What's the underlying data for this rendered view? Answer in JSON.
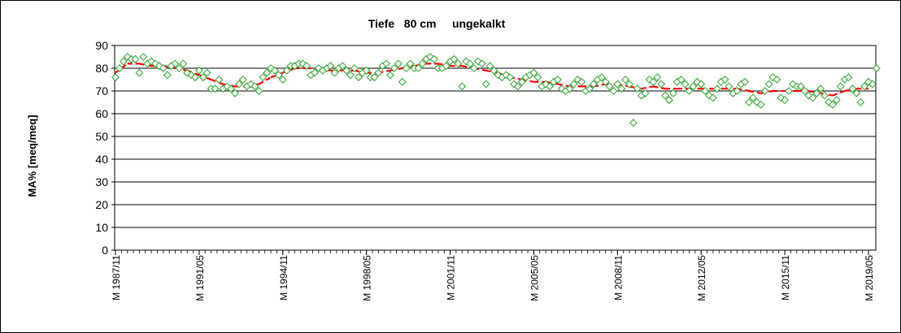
{
  "chart_data": {
    "type": "scatter",
    "title": "Tiefe   80 cm     ungekalkt",
    "xlabel": "",
    "ylabel": "MA% [meq/meq]",
    "ylim": [
      0,
      90
    ],
    "yticks": [
      0,
      10,
      20,
      30,
      40,
      50,
      60,
      70,
      80,
      90
    ],
    "xlim": [
      "1987-11",
      "2019-05"
    ],
    "xtick_labels": [
      {
        "label": "M 1987/11",
        "date": "1987-11"
      },
      {
        "label": "M 1991/05",
        "date": "1991-05"
      },
      {
        "label": "M 1994/11",
        "date": "1994-11"
      },
      {
        "label": "M 1998/05",
        "date": "1998-05"
      },
      {
        "label": "M 2001/11",
        "date": "2001-11"
      },
      {
        "label": "M 2005/05",
        "date": "2005-05"
      },
      {
        "label": "M 2008/11",
        "date": "2008-11"
      },
      {
        "label": "M 2012/05",
        "date": "2012-05"
      },
      {
        "label": "M 2015/11",
        "date": "2015-11"
      },
      {
        "label": "M 2019/05",
        "date": "2019-05"
      }
    ],
    "grid": "horizontal",
    "legend": "none",
    "series": [
      {
        "kind": "markers",
        "marker": "diamond-open",
        "color": "#2ca02c",
        "points": [
          [
            "1987-11",
            76
          ],
          [
            "1988-01",
            80
          ],
          [
            "1988-03",
            83
          ],
          [
            "1988-05",
            85
          ],
          [
            "1988-07",
            84
          ],
          [
            "1988-09",
            84
          ],
          [
            "1988-11",
            78
          ],
          [
            "1989-01",
            85
          ],
          [
            "1989-03",
            82
          ],
          [
            "1989-05",
            83
          ],
          [
            "1989-07",
            82
          ],
          [
            "1989-09",
            81
          ],
          [
            "1989-11",
            80
          ],
          [
            "1990-01",
            77
          ],
          [
            "1990-03",
            81
          ],
          [
            "1990-05",
            82
          ],
          [
            "1990-07",
            80
          ],
          [
            "1990-09",
            82
          ],
          [
            "1990-11",
            78
          ],
          [
            "1991-01",
            77
          ],
          [
            "1991-03",
            76
          ],
          [
            "1991-05",
            79
          ],
          [
            "1991-07",
            76
          ],
          [
            "1991-09",
            78
          ],
          [
            "1991-11",
            71
          ],
          [
            "1992-01",
            71
          ],
          [
            "1992-03",
            75
          ],
          [
            "1992-05",
            71
          ],
          [
            "1992-07",
            72
          ],
          [
            "1992-09",
            71
          ],
          [
            "1992-11",
            69
          ],
          [
            "1993-01",
            73
          ],
          [
            "1993-03",
            75
          ],
          [
            "1993-05",
            72
          ],
          [
            "1993-07",
            73
          ],
          [
            "1993-09",
            72
          ],
          [
            "1993-11",
            70
          ],
          [
            "1994-01",
            76
          ],
          [
            "1994-03",
            78
          ],
          [
            "1994-05",
            80
          ],
          [
            "1994-07",
            79
          ],
          [
            "1994-09",
            77
          ],
          [
            "1994-11",
            75
          ],
          [
            "1995-01",
            79
          ],
          [
            "1995-03",
            81
          ],
          [
            "1995-05",
            81
          ],
          [
            "1995-07",
            82
          ],
          [
            "1995-09",
            82
          ],
          [
            "1995-11",
            81
          ],
          [
            "1996-01",
            77
          ],
          [
            "1996-03",
            78
          ],
          [
            "1996-05",
            80
          ],
          [
            "1996-07",
            79
          ],
          [
            "1996-09",
            80
          ],
          [
            "1996-11",
            81
          ],
          [
            "1997-01",
            78
          ],
          [
            "1997-03",
            80
          ],
          [
            "1997-05",
            81
          ],
          [
            "1997-07",
            79
          ],
          [
            "1997-09",
            77
          ],
          [
            "1997-11",
            80
          ],
          [
            "1998-01",
            76
          ],
          [
            "1998-03",
            78
          ],
          [
            "1998-05",
            79
          ],
          [
            "1998-07",
            76
          ],
          [
            "1998-09",
            76
          ],
          [
            "1998-11",
            78
          ],
          [
            "1999-01",
            81
          ],
          [
            "1999-03",
            82
          ],
          [
            "1999-05",
            77
          ],
          [
            "1999-07",
            80
          ],
          [
            "1999-09",
            82
          ],
          [
            "1999-11",
            74
          ],
          [
            "2000-01",
            80
          ],
          [
            "2000-03",
            82
          ],
          [
            "2000-05",
            80
          ],
          [
            "2000-07",
            80
          ],
          [
            "2000-09",
            82
          ],
          [
            "2000-11",
            84
          ],
          [
            "2001-01",
            85
          ],
          [
            "2001-03",
            84
          ],
          [
            "2001-05",
            80
          ],
          [
            "2001-07",
            80
          ],
          [
            "2001-09",
            81
          ],
          [
            "2001-11",
            83
          ],
          [
            "2002-01",
            84
          ],
          [
            "2002-03",
            82
          ],
          [
            "2002-05",
            72
          ],
          [
            "2002-07",
            83
          ],
          [
            "2002-09",
            82
          ],
          [
            "2002-11",
            80
          ],
          [
            "2003-01",
            83
          ],
          [
            "2003-03",
            82
          ],
          [
            "2003-05",
            73
          ],
          [
            "2003-07",
            81
          ],
          [
            "2003-09",
            79
          ],
          [
            "2003-11",
            77
          ],
          [
            "2004-01",
            76
          ],
          [
            "2004-03",
            77
          ],
          [
            "2004-05",
            76
          ],
          [
            "2004-07",
            73
          ],
          [
            "2004-09",
            72
          ],
          [
            "2004-11",
            74
          ],
          [
            "2005-01",
            76
          ],
          [
            "2005-03",
            77
          ],
          [
            "2005-05",
            78
          ],
          [
            "2005-07",
            76
          ],
          [
            "2005-09",
            72
          ],
          [
            "2005-11",
            73
          ],
          [
            "2006-01",
            72
          ],
          [
            "2006-03",
            74
          ],
          [
            "2006-05",
            75
          ],
          [
            "2006-07",
            71
          ],
          [
            "2006-09",
            70
          ],
          [
            "2006-11",
            71
          ],
          [
            "2007-01",
            73
          ],
          [
            "2007-03",
            75
          ],
          [
            "2007-05",
            74
          ],
          [
            "2007-07",
            70
          ],
          [
            "2007-09",
            71
          ],
          [
            "2007-11",
            73
          ],
          [
            "2008-01",
            75
          ],
          [
            "2008-03",
            76
          ],
          [
            "2008-05",
            74
          ],
          [
            "2008-07",
            72
          ],
          [
            "2008-09",
            70
          ],
          [
            "2008-11",
            73
          ],
          [
            "2009-01",
            71
          ],
          [
            "2009-03",
            75
          ],
          [
            "2009-05",
            73
          ],
          [
            "2009-07",
            56
          ],
          [
            "2009-09",
            71
          ],
          [
            "2009-11",
            68
          ],
          [
            "2010-01",
            69
          ],
          [
            "2010-03",
            75
          ],
          [
            "2010-05",
            74
          ],
          [
            "2010-07",
            76
          ],
          [
            "2010-09",
            73
          ],
          [
            "2010-11",
            68
          ],
          [
            "2011-01",
            66
          ],
          [
            "2011-03",
            69
          ],
          [
            "2011-05",
            74
          ],
          [
            "2011-07",
            75
          ],
          [
            "2011-09",
            73
          ],
          [
            "2011-11",
            70
          ],
          [
            "2012-01",
            72
          ],
          [
            "2012-03",
            74
          ],
          [
            "2012-05",
            73
          ],
          [
            "2012-07",
            70
          ],
          [
            "2012-09",
            68
          ],
          [
            "2012-11",
            67
          ],
          [
            "2013-01",
            71
          ],
          [
            "2013-03",
            74
          ],
          [
            "2013-05",
            75
          ],
          [
            "2013-07",
            72
          ],
          [
            "2013-09",
            69
          ],
          [
            "2013-11",
            70
          ],
          [
            "2014-01",
            73
          ],
          [
            "2014-03",
            74
          ],
          [
            "2014-05",
            65
          ],
          [
            "2014-07",
            67
          ],
          [
            "2014-09",
            65
          ],
          [
            "2014-11",
            64
          ],
          [
            "2015-01",
            70
          ],
          [
            "2015-03",
            73
          ],
          [
            "2015-05",
            76
          ],
          [
            "2015-07",
            75
          ],
          [
            "2015-09",
            67
          ],
          [
            "2015-11",
            66
          ],
          [
            "2016-01",
            70
          ],
          [
            "2016-03",
            73
          ],
          [
            "2016-05",
            72
          ],
          [
            "2016-07",
            72
          ],
          [
            "2016-09",
            70
          ],
          [
            "2016-11",
            68
          ],
          [
            "2017-01",
            67
          ],
          [
            "2017-03",
            69
          ],
          [
            "2017-05",
            71
          ],
          [
            "2017-07",
            68
          ],
          [
            "2017-09",
            65
          ],
          [
            "2017-11",
            64
          ],
          [
            "2018-01",
            66
          ],
          [
            "2018-03",
            72
          ],
          [
            "2018-05",
            75
          ],
          [
            "2018-07",
            76
          ],
          [
            "2018-09",
            71
          ],
          [
            "2018-11",
            69
          ],
          [
            "2019-01",
            65
          ],
          [
            "2019-03",
            72
          ],
          [
            "2019-05",
            74
          ],
          [
            "2019-07",
            73
          ],
          [
            "2019-09",
            80
          ]
        ]
      },
      {
        "kind": "trend",
        "line": "dashed",
        "color": "#ff0000",
        "points": [
          [
            "1987-11",
            78
          ],
          [
            "1988-05",
            82
          ],
          [
            "1988-11",
            82
          ],
          [
            "1989-05",
            81
          ],
          [
            "1989-11",
            81
          ],
          [
            "1990-05",
            80
          ],
          [
            "1990-11",
            79
          ],
          [
            "1991-05",
            77
          ],
          [
            "1991-11",
            75
          ],
          [
            "1992-05",
            73
          ],
          [
            "1992-11",
            72
          ],
          [
            "1993-05",
            72
          ],
          [
            "1993-11",
            73
          ],
          [
            "1994-05",
            76
          ],
          [
            "1994-11",
            78
          ],
          [
            "1995-05",
            80
          ],
          [
            "1995-11",
            80
          ],
          [
            "1996-05",
            80
          ],
          [
            "1996-11",
            79
          ],
          [
            "1997-05",
            79
          ],
          [
            "1997-11",
            79
          ],
          [
            "1998-05",
            78
          ],
          [
            "1998-11",
            78
          ],
          [
            "1999-05",
            79
          ],
          [
            "1999-11",
            80
          ],
          [
            "2000-05",
            81
          ],
          [
            "2000-11",
            82
          ],
          [
            "2001-05",
            82
          ],
          [
            "2001-11",
            81
          ],
          [
            "2002-05",
            81
          ],
          [
            "2002-11",
            80
          ],
          [
            "2003-05",
            79
          ],
          [
            "2003-11",
            78
          ],
          [
            "2004-05",
            76
          ],
          [
            "2004-11",
            75
          ],
          [
            "2005-05",
            74
          ],
          [
            "2005-11",
            74
          ],
          [
            "2006-05",
            73
          ],
          [
            "2006-11",
            72
          ],
          [
            "2007-05",
            72
          ],
          [
            "2007-11",
            72
          ],
          [
            "2008-05",
            73
          ],
          [
            "2008-11",
            73
          ],
          [
            "2009-05",
            72
          ],
          [
            "2009-11",
            71
          ],
          [
            "2010-05",
            72
          ],
          [
            "2010-11",
            71
          ],
          [
            "2011-05",
            71
          ],
          [
            "2011-11",
            71
          ],
          [
            "2012-05",
            71
          ],
          [
            "2012-11",
            71
          ],
          [
            "2013-05",
            71
          ],
          [
            "2013-11",
            71
          ],
          [
            "2014-05",
            70
          ],
          [
            "2014-11",
            69
          ],
          [
            "2015-05",
            70
          ],
          [
            "2015-11",
            70
          ],
          [
            "2016-05",
            70
          ],
          [
            "2016-11",
            70
          ],
          [
            "2017-05",
            69
          ],
          [
            "2017-11",
            68
          ],
          [
            "2018-05",
            70
          ],
          [
            "2018-11",
            71
          ],
          [
            "2019-05",
            71
          ]
        ]
      }
    ]
  }
}
